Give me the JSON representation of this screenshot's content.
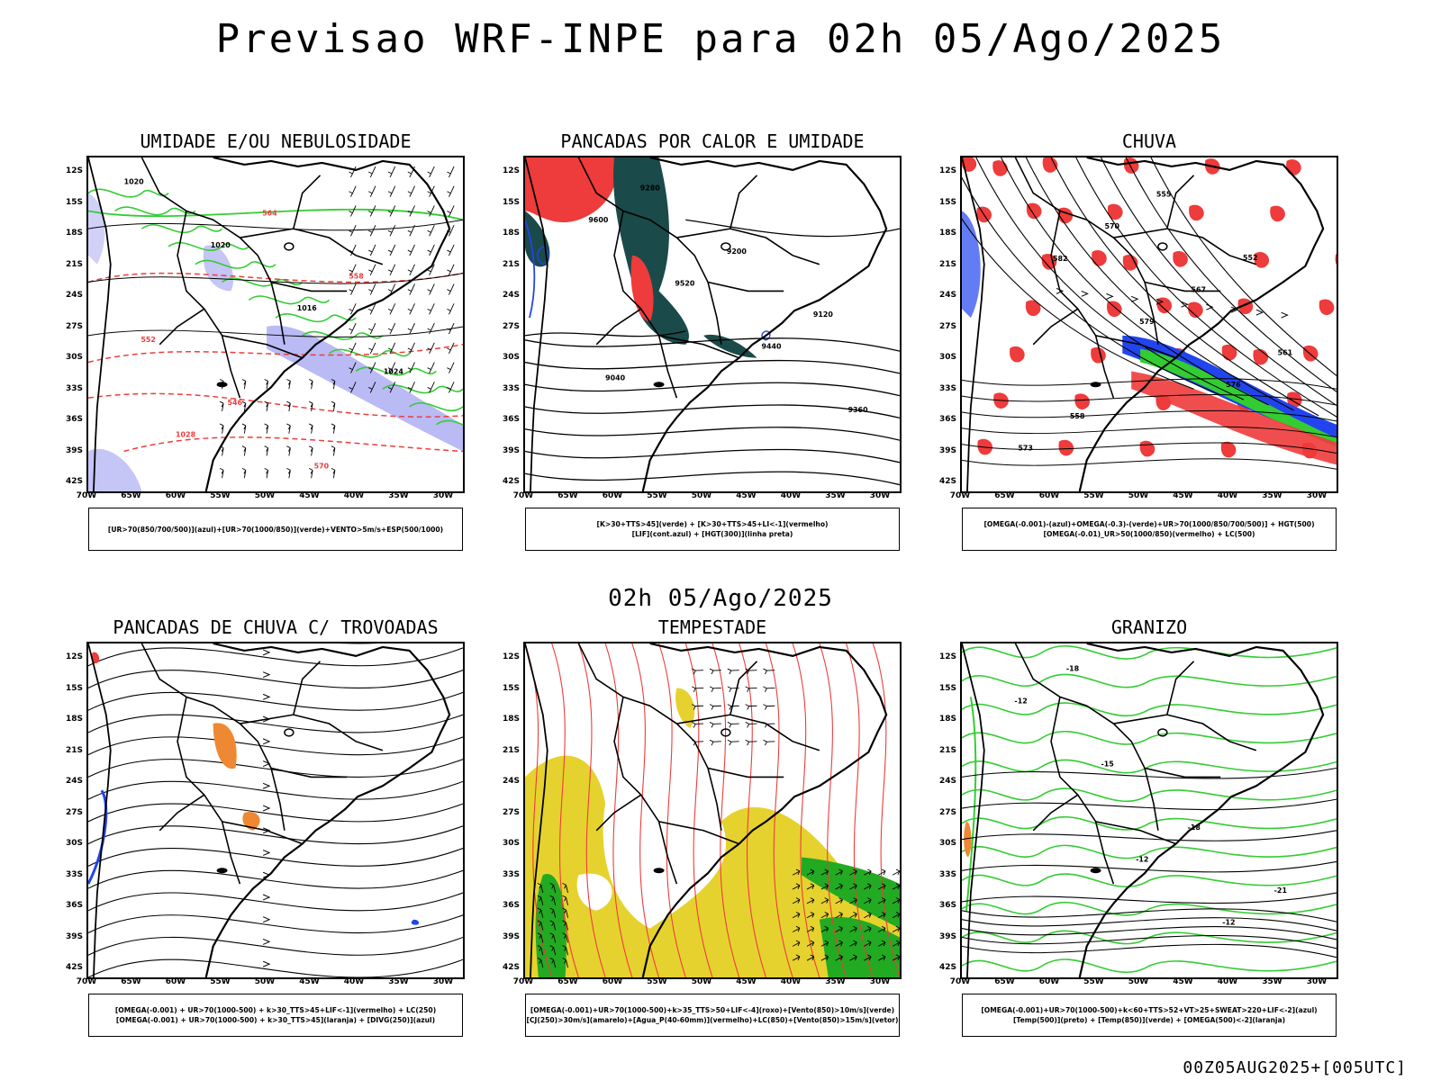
{
  "header": {
    "title": "Previsao WRF-INPE  para 02h 05/Ago/2025"
  },
  "middle": {
    "title": "02h 05/Ago/2025"
  },
  "footer": {
    "run": "00Z05AUG2025+[005UTC]"
  },
  "axes": {
    "lat": [
      "12S",
      "15S",
      "18S",
      "21S",
      "24S",
      "27S",
      "30S",
      "33S",
      "36S",
      "39S",
      "42S"
    ],
    "lon": [
      "70W",
      "65W",
      "60W",
      "55W",
      "50W",
      "45W",
      "40W",
      "35W",
      "30W"
    ]
  },
  "colors": {
    "red": "#ee3b3b",
    "green": "#33cc33",
    "blue": "#2244ee",
    "purple": "#8c8cee",
    "yellow": "#e6d22e",
    "dark": "#1b4a4a",
    "orange": "#ee8833"
  },
  "panels": [
    {
      "title": "UMIDADE E/OU NEBULOSIDADE",
      "legend": [
        "[UR>70(850/700/500)](azul)+[UR>70(1000/850)](verde)+VENTO>5m/s+ESP(500/1000)"
      ],
      "labels": [
        "1020",
        "1020",
        "1016",
        "1024",
        "1028",
        "564",
        "558",
        "552",
        "546",
        "570"
      ]
    },
    {
      "title": "PANCADAS POR CALOR E UMIDADE",
      "legend": [
        "[K>30+TTS>45](verde) + [K>30+TTS>45+LI<-1](vermelho)",
        "[LIF](cont.azul) + [HGT(300)](linha preta)"
      ],
      "labels": [
        "9600",
        "9520",
        "9440",
        "9360",
        "9280",
        "9200",
        "9120",
        "9040"
      ]
    },
    {
      "title": "CHUVA",
      "legend": [
        "[OMEGA(-0.001)-(azul)+OMEGA(-0.3)-(verde)+UR>70(1000/850/700/500)] + HGT(500)",
        "[OMEGA(-0.01)_UR>50(1000/850)(vermelho) + LC(500)"
      ],
      "labels": [
        "582",
        "579",
        "576",
        "573",
        "570",
        "567",
        "561",
        "558",
        "555",
        "552"
      ]
    },
    {
      "title": "PANCADAS DE CHUVA C/ TROVOADAS",
      "legend": [
        "[OMEGA(-0.001) + UR>70(1000-500) + k>30_TTS>45+LIF<-1](vermelho) + LC(250)",
        "[OMEGA(-0.001) + UR>70(1000-500) + k>30_TTS>45](laranja) + [DIVG(250)](azul)"
      ],
      "labels": []
    },
    {
      "title": "TEMPESTADE",
      "legend": [
        "[OMEGA(-0.001)+UR>70(1000-500)+k>35_TTS>50+LIF<-4](roxo)+[Vento(850)>10m/s](verde)",
        "[CJ(250)>30m/s](amarelo)+[Agua_P(40-60mm)](vermelho)+LC(850)+[Vento(850)>15m/s](vetor)"
      ],
      "labels": []
    },
    {
      "title": "GRANIZO",
      "legend": [
        "[OMEGA(-0.001)+UR>70(1000-500)+k<60+TTS>52+VT>25+SWEAT>220+LIF<-2](azul)",
        "[Temp(500)](preto) + [Temp(850)](verde) + [OMEGA(500)<-2](laranja)"
      ],
      "labels": [
        "-12",
        "-12",
        "-12",
        "-15",
        "-18",
        "-21",
        "-18"
      ]
    }
  ]
}
